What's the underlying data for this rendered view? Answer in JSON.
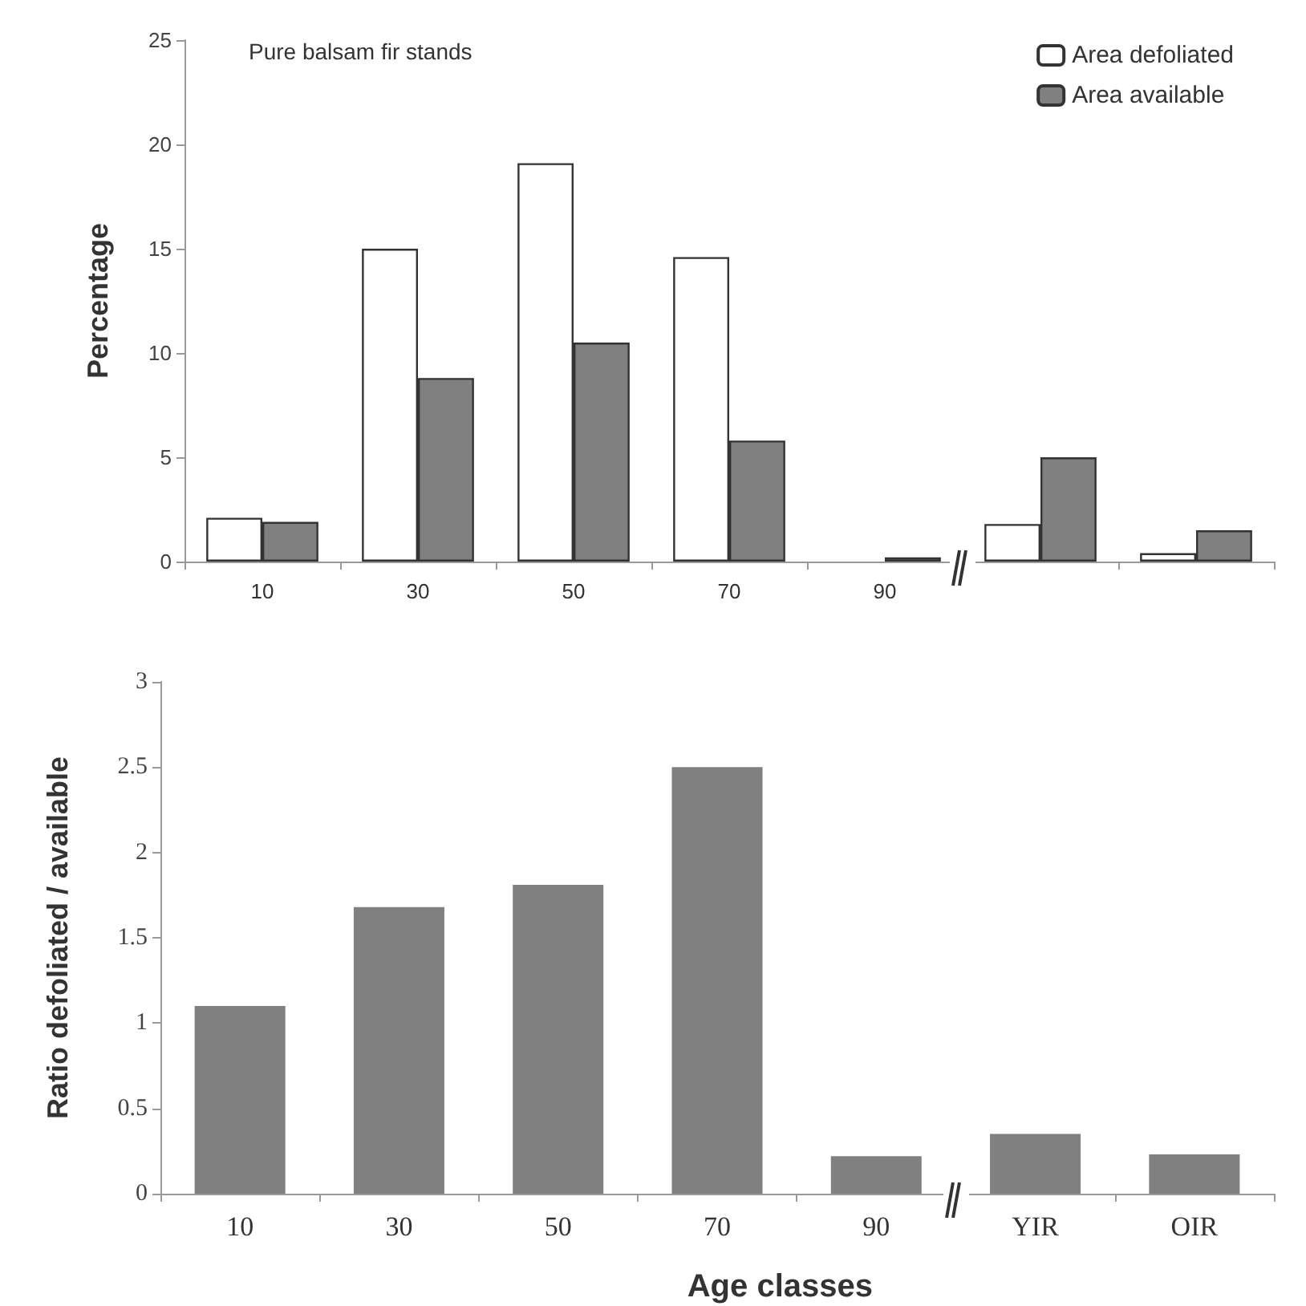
{
  "chart_data": [
    {
      "type": "bar",
      "title": "Pure balsam fir stands",
      "ylabel": "Percentage",
      "categories": [
        "10",
        "30",
        "50",
        "70",
        "90",
        null,
        null
      ],
      "series": [
        {
          "name": "Area defoliated",
          "color": "#ffffff",
          "values": [
            2.1,
            15,
            19.1,
            14.6,
            null,
            1.8,
            0.4
          ]
        },
        {
          "name": "Area available",
          "color": "#808080",
          "values": [
            1.9,
            8.8,
            10.5,
            5.8,
            0.2,
            5.0,
            1.5
          ]
        }
      ],
      "ylim": [
        0,
        25
      ],
      "yticks": [
        0,
        5,
        10,
        15,
        20,
        25
      ],
      "grid": false,
      "legend": "top right"
    },
    {
      "type": "bar",
      "xlabel": "Age classes",
      "ylabel": "Ratio defoliated / available",
      "categories": [
        "10",
        "30",
        "50",
        "70",
        "90",
        "YIR",
        "OIR"
      ],
      "series": [
        {
          "color": "#808080",
          "values": [
            1.1,
            1.68,
            1.81,
            2.5,
            0.22,
            0.35,
            0.23
          ]
        }
      ],
      "ylim": [
        0,
        3
      ],
      "yticks": [
        0,
        0.5,
        1,
        1.5,
        2,
        2.5,
        3
      ],
      "grid": false
    }
  ]
}
